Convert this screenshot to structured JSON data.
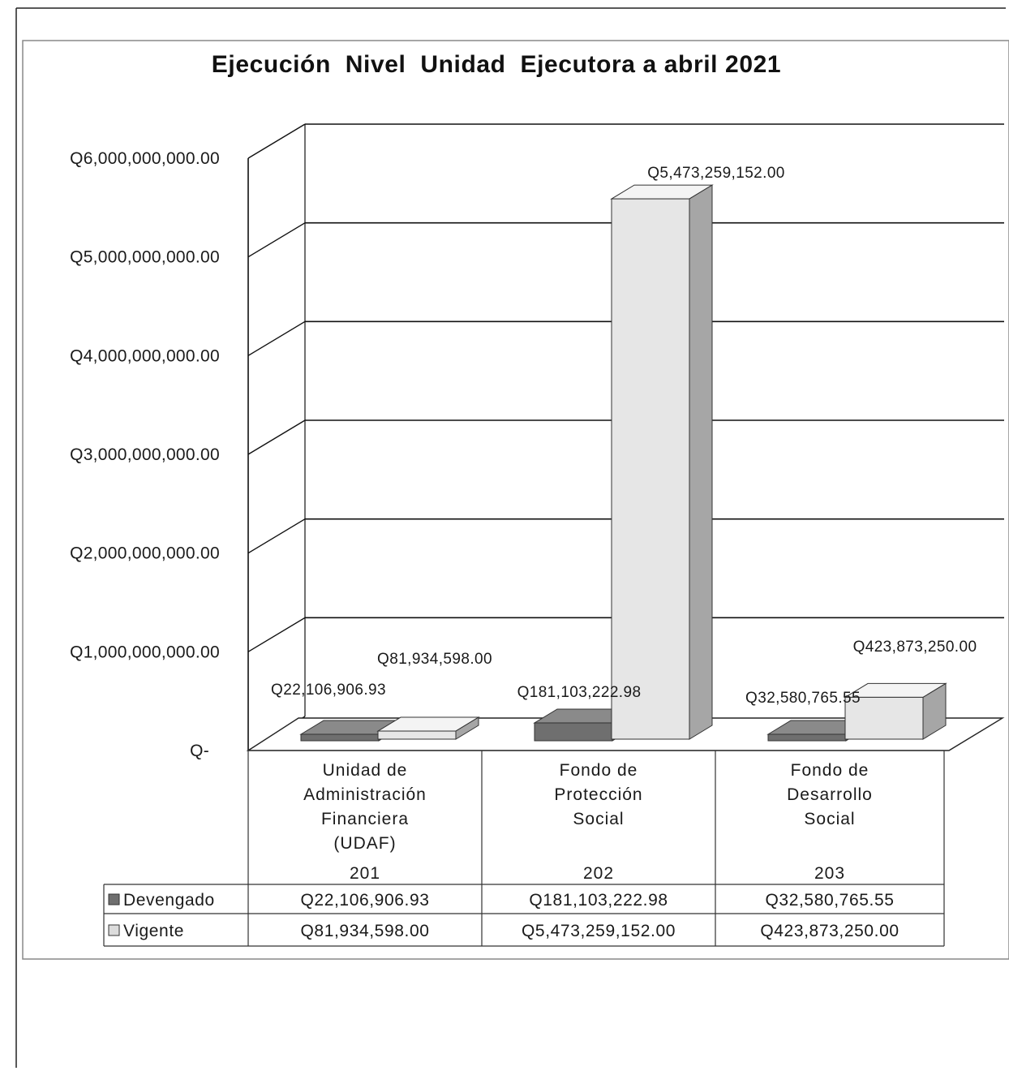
{
  "chart_data": {
    "type": "bar",
    "title": "Ejecución  Nivel  Unidad  Ejecutora a abril 2021",
    "categories": [
      {
        "name": [
          "Unidad de",
          "Administración",
          "Financiera",
          "(UDAF)"
        ],
        "code": "201"
      },
      {
        "name": [
          "Fondo de",
          "Protección",
          "Social"
        ],
        "code": "202"
      },
      {
        "name": [
          "Fondo de",
          "Desarrollo",
          "Social"
        ],
        "code": "203"
      }
    ],
    "series": [
      {
        "name": "Devengado",
        "color": "#6f6f6f",
        "values": [
          22106906.93,
          181103222.98,
          32580765.55
        ],
        "labels": [
          "Q22,106,906.93",
          "Q181,103,222.98",
          "Q32,580,765.55"
        ]
      },
      {
        "name": "Vigente",
        "color": "#dcdcdc",
        "values": [
          81934598.0,
          5473259152.0,
          423873250.0
        ],
        "labels": [
          "Q81,934,598.00",
          "Q5,473,259,152.00",
          "Q423,873,250.00"
        ]
      }
    ],
    "ylim": [
      0,
      6000000000
    ],
    "yticks": [
      0,
      1000000000,
      2000000000,
      3000000000,
      4000000000,
      5000000000,
      6000000000
    ],
    "ytick_labels": [
      "Q-",
      "Q1,000,000,000.00",
      "Q2,000,000,000.00",
      "Q3,000,000,000.00",
      "Q4,000,000,000.00",
      "Q5,000,000,000.00",
      "Q6,000,000,000.00"
    ],
    "grid": true,
    "legend": "data-table",
    "style": "3d-clustered-column"
  }
}
